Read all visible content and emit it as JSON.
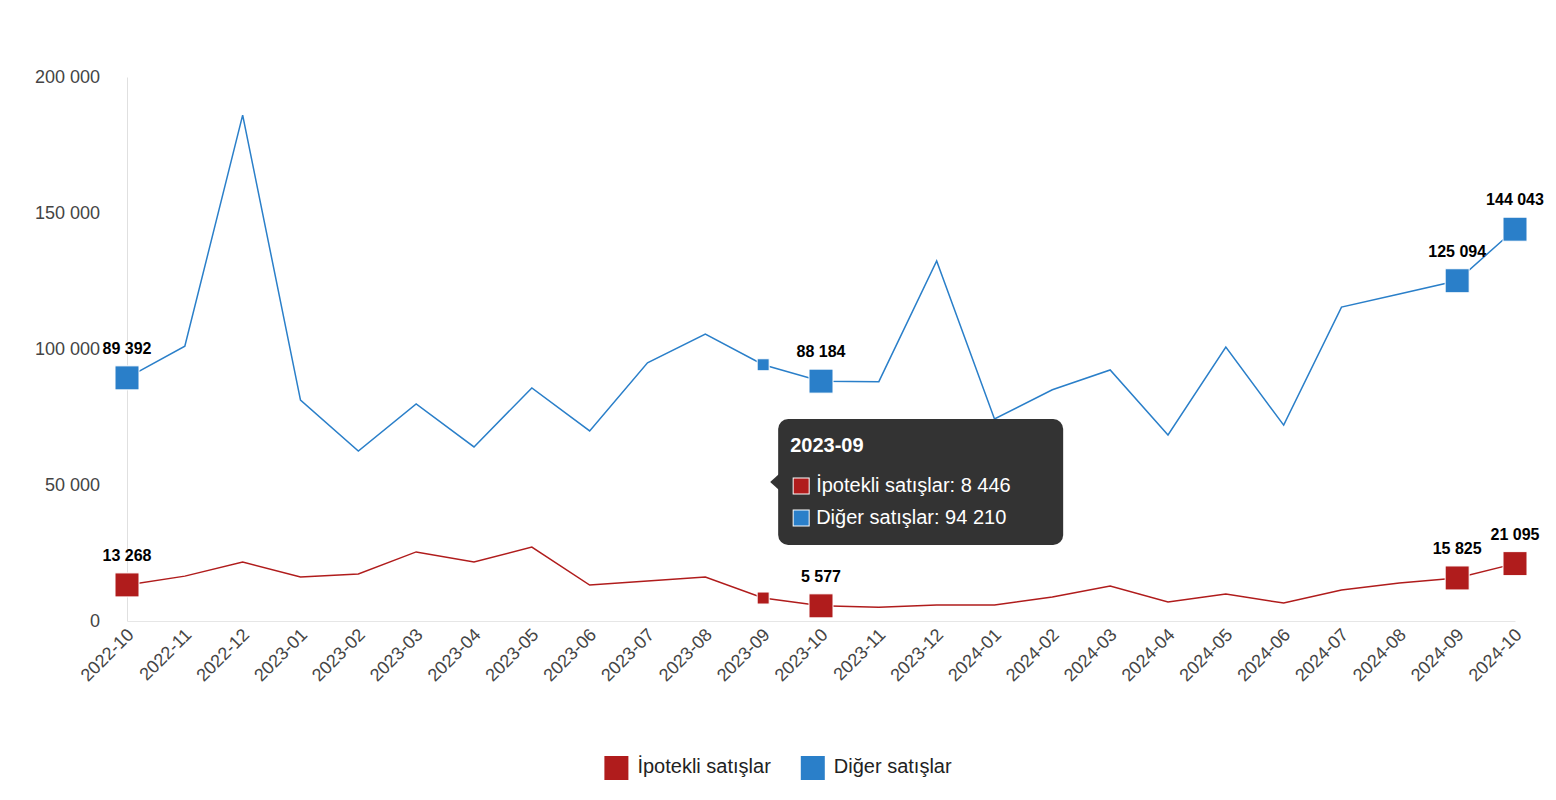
{
  "chart_data": {
    "type": "line",
    "categories": [
      "2022-10",
      "2022-11",
      "2022-12",
      "2023-01",
      "2023-02",
      "2023-03",
      "2023-04",
      "2023-05",
      "2023-06",
      "2023-07",
      "2023-08",
      "2023-09",
      "2023-10",
      "2023-11",
      "2023-12",
      "2024-01",
      "2024-02",
      "2024-03",
      "2024-04",
      "2024-05",
      "2024-06",
      "2024-07",
      "2024-08",
      "2024-09",
      "2024-10"
    ],
    "series": [
      {
        "name": "İpotekli satışlar",
        "color": "#b01c1c",
        "marker": "square",
        "values": [
          13268,
          16500,
          21700,
          16200,
          17300,
          25400,
          21700,
          27200,
          13200,
          14700,
          16200,
          8446,
          5577,
          5100,
          5900,
          5900,
          8800,
          12900,
          7000,
          9900,
          6600,
          11400,
          14000,
          15825,
          21095
        ],
        "value_labels": [
          "13 268",
          null,
          null,
          null,
          null,
          null,
          null,
          null,
          null,
          null,
          null,
          null,
          "5 577",
          null,
          null,
          null,
          null,
          null,
          null,
          null,
          null,
          null,
          null,
          "15 825",
          "21 095"
        ]
      },
      {
        "name": "Diğer satışlar",
        "color": "#2a7fc9",
        "marker": "square",
        "values": [
          89392,
          101000,
          186000,
          81200,
          62500,
          79800,
          64000,
          85700,
          69900,
          94900,
          105500,
          94210,
          88184,
          88000,
          132400,
          74300,
          85000,
          92300,
          68400,
          100700,
          72000,
          115400,
          120200,
          125094,
          144043
        ],
        "value_labels": [
          "89 392",
          null,
          null,
          null,
          null,
          null,
          null,
          null,
          null,
          null,
          null,
          null,
          "88 184",
          null,
          null,
          null,
          null,
          null,
          null,
          null,
          null,
          null,
          null,
          "125 094",
          "144 043"
        ]
      }
    ],
    "ylim": [
      0,
      200000
    ],
    "yticks": [
      0,
      {
        "value": 50000,
        "label": "50 000"
      },
      {
        "value": 100000,
        "label": "100 000"
      },
      {
        "value": 150000,
        "label": "150 000"
      },
      {
        "value": 200000,
        "label": "200 000"
      }
    ],
    "grid": false,
    "legend": "bottom",
    "tooltip": {
      "title": "2023-09",
      "lines": [
        "İpotekli satışlar: 8 446",
        "Diğer satışlar: 94 210"
      ]
    }
  }
}
